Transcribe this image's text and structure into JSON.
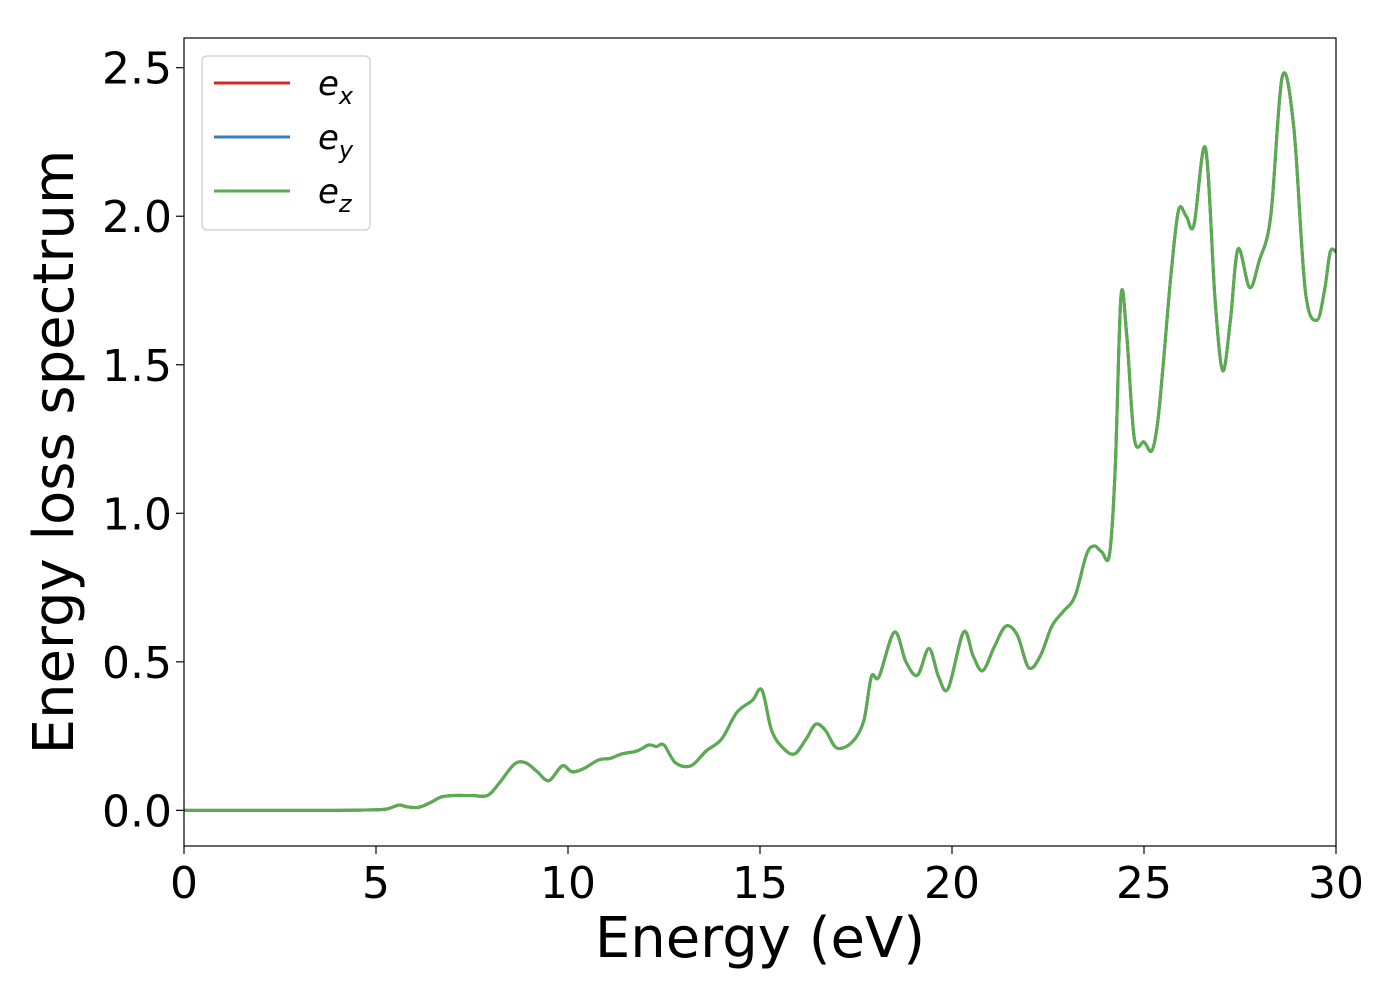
{
  "chart_data": {
    "type": "line",
    "title": "",
    "xlabel": "Energy (eV)",
    "ylabel": "Energy loss spectrum",
    "xlim": [
      0,
      30
    ],
    "ylim": [
      -0.12,
      2.6
    ],
    "xticks": [
      0,
      5,
      10,
      15,
      20,
      25,
      30
    ],
    "yticks": [
      0.0,
      0.5,
      1.0,
      1.5,
      2.0,
      2.5
    ],
    "xtick_labels": [
      "0",
      "5",
      "10",
      "15",
      "20",
      "25",
      "30"
    ],
    "ytick_labels": [
      "0.0",
      "0.5",
      "1.0",
      "1.5",
      "2.0",
      "2.5"
    ],
    "grid": false,
    "legend_position": "upper-left",
    "x": [
      0,
      1,
      2,
      3,
      4,
      5,
      5.3,
      5.6,
      5.8,
      6.1,
      6.4,
      6.7,
      7.0,
      7.5,
      7.9,
      8.2,
      8.6,
      8.9,
      9.2,
      9.5,
      9.85,
      10.1,
      10.4,
      10.8,
      11.1,
      11.4,
      11.8,
      12.1,
      12.3,
      12.5,
      12.8,
      13.2,
      13.6,
      14.0,
      14.4,
      14.8,
      15.05,
      15.3,
      15.6,
      15.9,
      16.2,
      16.45,
      16.7,
      17.0,
      17.4,
      17.7,
      17.9,
      18.1,
      18.5,
      18.8,
      19.1,
      19.4,
      19.65,
      19.9,
      20.3,
      20.55,
      20.8,
      21.1,
      21.4,
      21.7,
      22.0,
      22.3,
      22.6,
      22.9,
      23.2,
      23.5,
      23.7,
      23.9,
      24.1,
      24.25,
      24.4,
      24.55,
      24.75,
      25.0,
      25.2,
      25.35,
      25.5,
      25.7,
      25.9,
      26.1,
      26.3,
      26.6,
      26.85,
      27.05,
      27.25,
      27.45,
      27.75,
      28.0,
      28.3,
      28.6,
      28.9,
      29.2,
      29.5,
      29.7,
      29.85,
      30.0
    ],
    "series": [
      {
        "name": "e_x",
        "color": "#d62728",
        "y": [
          0.0,
          0.0,
          0.0,
          0.0,
          0.0,
          0.002,
          0.005,
          0.018,
          0.012,
          0.01,
          0.025,
          0.045,
          0.05,
          0.05,
          0.05,
          0.09,
          0.155,
          0.16,
          0.13,
          0.1,
          0.15,
          0.13,
          0.14,
          0.17,
          0.175,
          0.19,
          0.2,
          0.22,
          0.215,
          0.22,
          0.16,
          0.15,
          0.2,
          0.24,
          0.33,
          0.37,
          0.405,
          0.27,
          0.21,
          0.19,
          0.24,
          0.29,
          0.27,
          0.21,
          0.23,
          0.3,
          0.45,
          0.45,
          0.6,
          0.5,
          0.455,
          0.545,
          0.45,
          0.41,
          0.6,
          0.52,
          0.47,
          0.55,
          0.62,
          0.59,
          0.48,
          0.52,
          0.62,
          0.67,
          0.72,
          0.86,
          0.89,
          0.87,
          0.86,
          1.15,
          1.73,
          1.6,
          1.25,
          1.24,
          1.21,
          1.3,
          1.5,
          1.8,
          2.02,
          2.0,
          1.97,
          2.23,
          1.72,
          1.48,
          1.65,
          1.89,
          1.76,
          1.85,
          2.0,
          2.47,
          2.3,
          1.75,
          1.65,
          1.75,
          1.88,
          1.88
        ]
      },
      {
        "name": "e_y",
        "color": "#3a7fb8",
        "y": [
          0.0,
          0.0,
          0.0,
          0.0,
          0.0,
          0.002,
          0.005,
          0.018,
          0.012,
          0.01,
          0.025,
          0.045,
          0.05,
          0.05,
          0.05,
          0.09,
          0.155,
          0.16,
          0.13,
          0.1,
          0.15,
          0.13,
          0.14,
          0.17,
          0.175,
          0.19,
          0.2,
          0.22,
          0.215,
          0.22,
          0.16,
          0.15,
          0.2,
          0.24,
          0.33,
          0.37,
          0.405,
          0.27,
          0.21,
          0.19,
          0.24,
          0.29,
          0.27,
          0.21,
          0.23,
          0.3,
          0.45,
          0.45,
          0.6,
          0.5,
          0.455,
          0.545,
          0.45,
          0.41,
          0.6,
          0.52,
          0.47,
          0.55,
          0.62,
          0.59,
          0.48,
          0.52,
          0.62,
          0.67,
          0.72,
          0.86,
          0.89,
          0.87,
          0.86,
          1.15,
          1.73,
          1.6,
          1.25,
          1.24,
          1.21,
          1.3,
          1.5,
          1.8,
          2.02,
          2.0,
          1.97,
          2.23,
          1.72,
          1.48,
          1.65,
          1.89,
          1.76,
          1.85,
          2.0,
          2.47,
          2.3,
          1.75,
          1.65,
          1.75,
          1.88,
          1.88
        ]
      },
      {
        "name": "e_z",
        "color": "#5aad4e",
        "y": [
          0.0,
          0.0,
          0.0,
          0.0,
          0.0,
          0.002,
          0.005,
          0.018,
          0.012,
          0.01,
          0.025,
          0.045,
          0.05,
          0.05,
          0.05,
          0.09,
          0.155,
          0.16,
          0.13,
          0.1,
          0.15,
          0.13,
          0.14,
          0.17,
          0.175,
          0.19,
          0.2,
          0.22,
          0.215,
          0.22,
          0.16,
          0.15,
          0.2,
          0.24,
          0.33,
          0.37,
          0.405,
          0.27,
          0.21,
          0.19,
          0.24,
          0.29,
          0.27,
          0.21,
          0.23,
          0.3,
          0.45,
          0.45,
          0.6,
          0.5,
          0.455,
          0.545,
          0.45,
          0.41,
          0.6,
          0.52,
          0.47,
          0.55,
          0.62,
          0.59,
          0.48,
          0.52,
          0.62,
          0.67,
          0.72,
          0.86,
          0.89,
          0.87,
          0.86,
          1.15,
          1.73,
          1.6,
          1.25,
          1.24,
          1.21,
          1.3,
          1.5,
          1.8,
          2.02,
          2.0,
          1.97,
          2.23,
          1.72,
          1.48,
          1.65,
          1.89,
          1.76,
          1.85,
          2.0,
          2.47,
          2.3,
          1.75,
          1.65,
          1.75,
          1.88,
          1.88
        ]
      }
    ],
    "legend": [
      {
        "base": "e",
        "sub": "x",
        "color": "#d62728"
      },
      {
        "base": "e",
        "sub": "y",
        "color": "#3a7fb8"
      },
      {
        "base": "e",
        "sub": "z",
        "color": "#5aad4e"
      }
    ]
  }
}
